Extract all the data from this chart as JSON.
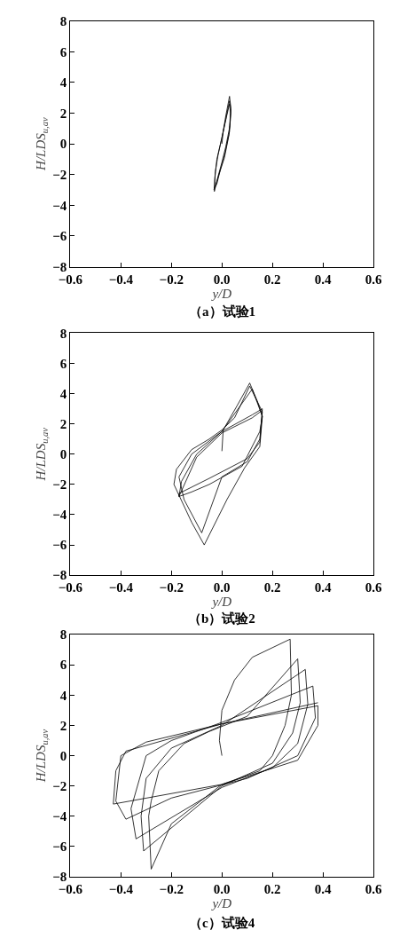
{
  "chart_data": [
    {
      "type": "line",
      "title": "（a）试验1",
      "xlabel": "y/D",
      "ylabel": "H/LDS$_{u,av}$",
      "marker": "none",
      "xlim": [
        -0.6,
        0.6
      ],
      "ylim": [
        -8,
        8
      ],
      "xticks": [
        {
          "value": -0.6,
          "label": "−0.6"
        },
        {
          "value": -0.4,
          "label": "−0.4"
        },
        {
          "value": -0.2,
          "label": "−0.2"
        },
        {
          "value": 0,
          "label": "0.0"
        },
        0.2,
        0.4,
        0.6
      ],
      "yticks": [
        {
          "value": -8,
          "label": "−8"
        },
        {
          "value": -6,
          "label": "−6"
        },
        {
          "value": -4,
          "label": "−4"
        },
        {
          "value": -2,
          "label": "−2"
        },
        0,
        2,
        4,
        6,
        8
      ],
      "series": [
        {
          "color": "#000000",
          "x": [
            0,
            0.005,
            0.015,
            0.03,
            0.035,
            0.032,
            0.015,
            0,
            -0.015,
            -0.03,
            -0.028,
            -0.02,
            0,
            0.015,
            0.03,
            0.036,
            0.03,
            0.012,
            -0.005,
            -0.02,
            -0.03,
            -0.026,
            -0.015,
            0.005,
            0.02,
            0.03,
            0.034,
            0.028,
            0.01,
            -0.01,
            -0.025,
            -0.032
          ],
          "values": [
            0,
            0.8,
            1.8,
            3.1,
            2.4,
            1.2,
            -0.2,
            -1.2,
            -2.1,
            -3.1,
            -2.2,
            -1.0,
            0.4,
            1.6,
            2.8,
            2.2,
            0.8,
            -0.6,
            -1.6,
            -2.6,
            -2.9,
            -1.8,
            -0.7,
            0.8,
            1.9,
            2.6,
            2.0,
            0.6,
            -0.9,
            -1.9,
            -2.7,
            -3.0
          ]
        }
      ]
    },
    {
      "type": "line",
      "title": "（b）试验2",
      "xlabel": "y/D",
      "ylabel": "H/LDS$_{u,av}$",
      "marker": "none",
      "xlim": [
        -0.6,
        0.6
      ],
      "ylim": [
        -8,
        8
      ],
      "xticks": [
        {
          "value": -0.6,
          "label": "−0.6"
        },
        {
          "value": -0.4,
          "label": "−0.4"
        },
        {
          "value": -0.2,
          "label": "−0.2"
        },
        {
          "value": 0,
          "label": "0.0"
        },
        0.2,
        0.4,
        0.6
      ],
      "yticks": [
        {
          "value": -8,
          "label": "−8"
        },
        {
          "value": -6,
          "label": "−6"
        },
        {
          "value": -4,
          "label": "−4"
        },
        {
          "value": -2,
          "label": "−2"
        },
        0,
        2,
        4,
        6,
        8
      ],
      "series": [
        {
          "color": "#000000",
          "x": [
            0,
            0.005,
            0.06,
            0.11,
            0.14,
            0.16,
            0.15,
            0.09,
            0.02,
            -0.07,
            -0.12,
            -0.19,
            -0.18,
            -0.12,
            -0.05,
            0,
            0.05,
            0.11,
            0.16,
            0.15,
            0.1,
            0,
            -0.08,
            -0.15,
            -0.17,
            -0.12,
            0,
            0.12,
            0.16,
            0.15,
            0.08,
            -0.05,
            -0.12,
            -0.17,
            -0.16,
            -0.1,
            0,
            0.12,
            0.16,
            0.15,
            0.1,
            -0.05,
            -0.17,
            -0.17,
            -0.1,
            0,
            0.12,
            0.16
          ],
          "values": [
            0.2,
            1.6,
            3.2,
            4.7,
            3.5,
            2.5,
            0.5,
            -0.9,
            -3,
            -6,
            -4.5,
            -2,
            -1,
            0.3,
            1,
            1.6,
            2.4,
            4.5,
            2.8,
            1,
            -0.5,
            -1.5,
            -5.2,
            -3,
            -1.5,
            0,
            1.5,
            4.3,
            2.5,
            1.5,
            -0.8,
            -2.0,
            -2.5,
            -2.8,
            -1.8,
            0,
            1.5,
            2.6,
            3,
            0.8,
            -0.3,
            -1.6,
            -2.6,
            -2.8,
            -0.2,
            1.4,
            2.4,
            2.9
          ]
        }
      ]
    },
    {
      "type": "line",
      "title": "（c）试验4",
      "xlabel": "y/D",
      "ylabel": "H/LDS$_{u,av}$",
      "marker": "none",
      "xlim": [
        -0.6,
        0.6
      ],
      "ylim": [
        -8,
        8
      ],
      "xticks": [
        {
          "value": -0.6,
          "label": "−0.6"
        },
        {
          "value": -0.4,
          "label": "−0.4"
        },
        {
          "value": -0.2,
          "label": "−0.2"
        },
        {
          "value": 0,
          "label": "0.0"
        },
        0.2,
        0.4,
        0.6
      ],
      "yticks": [
        {
          "value": -8,
          "label": "−8"
        },
        {
          "value": -6,
          "label": "−6"
        },
        {
          "value": -4,
          "label": "−4"
        },
        {
          "value": -2,
          "label": "−2"
        },
        0,
        2,
        4,
        6,
        8
      ],
      "series": [
        {
          "color": "#000000",
          "x": [
            0,
            -0.01,
            0,
            0.05,
            0.12,
            0.27,
            0.275,
            0.25,
            0.2,
            0.15,
            0,
            -0.2,
            -0.28,
            -0.29,
            -0.28,
            -0.25,
            -0.15,
            -0.05,
            0.1,
            0.3,
            0.31,
            0.28,
            0.2,
            0,
            -0.31,
            -0.32,
            -0.3,
            -0.2,
            0,
            0.33,
            0.34,
            0.3,
            0.2,
            0,
            -0.34,
            -0.36,
            -0.3,
            -0.2,
            0,
            0.36,
            0.37,
            0.3,
            0.1,
            -0.2,
            -0.38,
            -0.42,
            -0.4,
            -0.3,
            0,
            0.38,
            0.38,
            0.3,
            0,
            -0.43,
            -0.42,
            -0.38,
            0,
            0.38
          ],
          "values": [
            0,
            1,
            3,
            5,
            6.5,
            7.7,
            4,
            2,
            0,
            -1,
            -1.9,
            -4.5,
            -7.5,
            -4,
            -3,
            -1,
            0.8,
            1.6,
            2.6,
            6.4,
            3.5,
            1.5,
            -0.5,
            -2,
            -6.3,
            -4,
            -1.5,
            0.5,
            2,
            5.7,
            3.4,
            0.8,
            -0.8,
            -2.1,
            -5.5,
            -3.5,
            0,
            1,
            2.2,
            4.6,
            2.5,
            0,
            -1.5,
            -2.8,
            -4.2,
            -3,
            0,
            0.9,
            2.1,
            3.3,
            2,
            -0.3,
            -1.9,
            -3.2,
            -1,
            0.3,
            2.1,
            3.5
          ]
        }
      ]
    }
  ]
}
